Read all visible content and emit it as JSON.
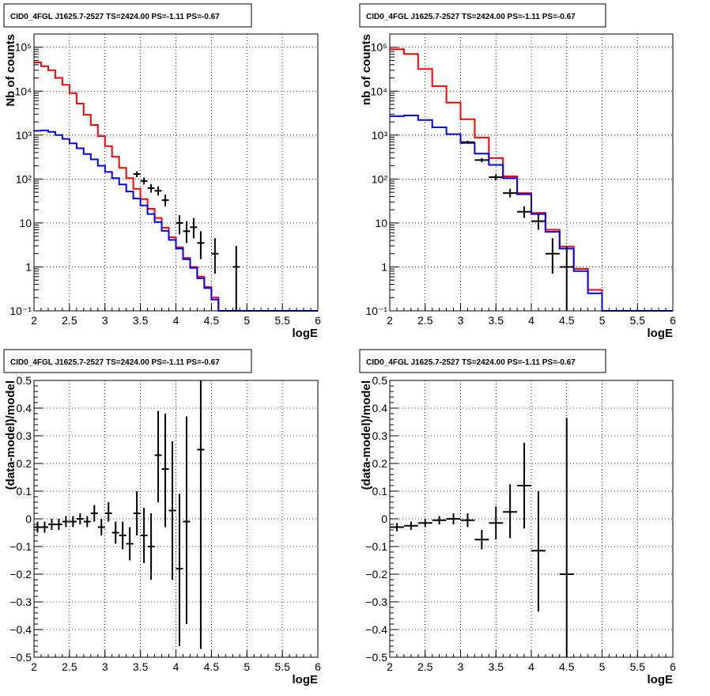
{
  "colors": {
    "data": "#000000",
    "model_total": "#ff0000",
    "model_component": "#0000ff",
    "frame": "#000000",
    "grid": "#000000"
  },
  "chart_data": [
    {
      "type": "line",
      "title": "CID0_4FGL J1625.7-2527 TS=2424.00 PS=-1.11 PS=-0.67",
      "xlabel": "logE",
      "ylabel": "Nb of counts",
      "xlim": [
        2,
        6
      ],
      "ylim": [
        0.1,
        200000
      ],
      "yscale": "log",
      "grid": true,
      "x_ticks": [
        "2",
        "2.5",
        "3",
        "3.5",
        "4",
        "4.5",
        "5",
        "5.5",
        "6"
      ],
      "y_ticks": [
        "10⁻¹",
        "1",
        "10",
        "10²",
        "10³",
        "10⁴",
        "10⁵"
      ],
      "bin_edges": [
        2.0,
        2.1,
        2.2,
        2.3,
        2.4,
        2.5,
        2.6,
        2.7,
        2.8,
        2.9,
        3.0,
        3.1,
        3.2,
        3.3,
        3.4,
        3.5,
        3.6,
        3.7,
        3.8,
        3.9,
        4.0,
        4.1,
        4.2,
        4.3,
        4.4,
        4.5,
        4.6,
        4.7,
        4.8,
        4.9,
        5.0,
        5.1,
        5.2,
        5.3,
        5.4,
        5.5,
        5.6,
        5.7,
        5.8,
        5.9,
        6.0
      ],
      "series": [
        {
          "color": "#ff0000",
          "style": "step",
          "values": [
            45000,
            37000,
            30000,
            20000,
            14000,
            9000,
            5200,
            2900,
            1700,
            950,
            560,
            320,
            180,
            105,
            60,
            35,
            21,
            13,
            7.8,
            4.7,
            2.8,
            1.6,
            1.0,
            0.6,
            0.35,
            0.2,
            0.1,
            0.1,
            0.1,
            0.1,
            0.1,
            0.1,
            0.1,
            0.1,
            0.1,
            0.1,
            0.1,
            0.1,
            0.1,
            0.1
          ]
        },
        {
          "color": "#0000ff",
          "style": "step",
          "values": [
            1250,
            1280,
            1180,
            1000,
            820,
            650,
            500,
            370,
            280,
            200,
            145,
            105,
            75,
            52,
            36,
            25,
            16,
            10.5,
            6.6,
            4.1,
            2.6,
            1.5,
            0.95,
            0.55,
            0.33,
            0.18,
            0.1,
            0.1,
            0.1,
            0.1,
            0.1,
            0.1,
            0.1,
            0.1,
            0.1,
            0.1,
            0.1,
            0.1,
            0.1,
            0.1
          ]
        },
        {
          "color": "#000000",
          "style": "errorbar",
          "points": [
            {
              "x": 3.45,
              "y": 130,
              "ylo": 110,
              "yhi": 150,
              "xerr": 0.05
            },
            {
              "x": 3.55,
              "y": 90,
              "ylo": 75,
              "yhi": 108,
              "xerr": 0.05
            },
            {
              "x": 3.65,
              "y": 62,
              "ylo": 49,
              "yhi": 77,
              "xerr": 0.05
            },
            {
              "x": 3.75,
              "y": 54,
              "ylo": 42,
              "yhi": 68,
              "xerr": 0.05
            },
            {
              "x": 3.85,
              "y": 33,
              "ylo": 24,
              "yhi": 44,
              "xerr": 0.05
            },
            {
              "x": 4.05,
              "y": 10,
              "ylo": 5.5,
              "yhi": 15,
              "xerr": 0.05
            },
            {
              "x": 4.15,
              "y": 6.5,
              "ylo": 3.5,
              "yhi": 11,
              "xerr": 0.05
            },
            {
              "x": 4.25,
              "y": 8,
              "ylo": 4.5,
              "yhi": 13,
              "xerr": 0.05
            },
            {
              "x": 4.35,
              "y": 3.5,
              "ylo": 1.5,
              "yhi": 6.5,
              "xerr": 0.05
            },
            {
              "x": 4.55,
              "y": 2,
              "ylo": 0.7,
              "yhi": 4.5,
              "xerr": 0.05
            },
            {
              "x": 4.85,
              "y": 1,
              "ylo": 0.1,
              "yhi": 3,
              "xerr": 0.05
            }
          ]
        }
      ]
    },
    {
      "type": "line",
      "title": "CID0_4FGL J1625.7-2527 TS=2424.00 PS=-1.11 PS=-0.67",
      "xlabel": "logE",
      "ylabel": "nb of counts",
      "xlim": [
        2,
        6
      ],
      "ylim": [
        0.1,
        200000
      ],
      "yscale": "log",
      "grid": true,
      "x_ticks": [
        "2",
        "2.5",
        "3",
        "3.5",
        "4",
        "4.5",
        "5",
        "5.5",
        "6"
      ],
      "y_ticks": [
        "10⁻¹",
        "1",
        "10",
        "10²",
        "10³",
        "10⁴",
        "10⁵"
      ],
      "bin_edges": [
        2.0,
        2.2,
        2.4,
        2.6,
        2.8,
        3.0,
        3.2,
        3.4,
        3.6,
        3.8,
        4.0,
        4.2,
        4.4,
        4.6,
        4.8,
        5.0,
        5.2,
        5.4,
        5.6,
        5.8,
        6.0
      ],
      "series": [
        {
          "color": "#ff0000",
          "style": "step",
          "values": [
            90000,
            70000,
            32000,
            13000,
            5500,
            2300,
            880,
            300,
            115,
            48,
            17,
            7,
            2.9,
            0.9,
            0.3,
            0.1,
            0.1,
            0.1,
            0.1,
            0.1
          ]
        },
        {
          "color": "#0000ff",
          "style": "step",
          "values": [
            2700,
            2800,
            2200,
            1500,
            1050,
            660,
            380,
            210,
            105,
            45,
            16,
            6.3,
            2.6,
            0.8,
            0.25,
            0.1,
            0.1,
            0.1,
            0.1,
            0.1
          ]
        },
        {
          "color": "#000000",
          "style": "errorbar",
          "points": [
            {
              "x": 3.1,
              "y": 690,
              "ylo": 640,
              "yhi": 740,
              "xerr": 0.1
            },
            {
              "x": 3.3,
              "y": 270,
              "ylo": 240,
              "yhi": 300,
              "xerr": 0.1
            },
            {
              "x": 3.5,
              "y": 110,
              "ylo": 92,
              "yhi": 128,
              "xerr": 0.1
            },
            {
              "x": 3.7,
              "y": 48,
              "ylo": 38,
              "yhi": 60,
              "xerr": 0.1
            },
            {
              "x": 3.9,
              "y": 18,
              "ylo": 13,
              "yhi": 24,
              "xerr": 0.1
            },
            {
              "x": 4.1,
              "y": 11,
              "ylo": 7,
              "yhi": 16,
              "xerr": 0.1
            },
            {
              "x": 4.3,
              "y": 2,
              "ylo": 0.7,
              "yhi": 4.5,
              "xerr": 0.1
            },
            {
              "x": 4.5,
              "y": 1,
              "ylo": 0.1,
              "yhi": 3,
              "xerr": 0.1
            }
          ]
        }
      ]
    },
    {
      "type": "scatter",
      "title": "CID0_4FGL J1625.7-2527 TS=2424.00 PS=-1.11 PS=-0.67",
      "xlabel": "logE",
      "ylabel": "(data-model)/model",
      "xlim": [
        2,
        6
      ],
      "ylim": [
        -0.5,
        0.5
      ],
      "grid": true,
      "x_ticks": [
        "2",
        "2.5",
        "3",
        "3.5",
        "4",
        "4.5",
        "5",
        "5.5",
        "6"
      ],
      "y_ticks": [
        "−0.5",
        "−0.4",
        "−0.3",
        "−0.2",
        "−0.1",
        "0",
        "0.1",
        "0.2",
        "0.3",
        "0.4",
        "0.5"
      ],
      "series": [
        {
          "color": "#000000",
          "style": "errorbar",
          "points": [
            {
              "x": 2.05,
              "y": -0.03,
              "ylo": -0.05,
              "yhi": -0.01,
              "xerr": 0.05
            },
            {
              "x": 2.15,
              "y": -0.03,
              "ylo": -0.05,
              "yhi": -0.01,
              "xerr": 0.05
            },
            {
              "x": 2.25,
              "y": -0.02,
              "ylo": -0.04,
              "yhi": 0.0,
              "xerr": 0.05
            },
            {
              "x": 2.35,
              "y": -0.02,
              "ylo": -0.04,
              "yhi": 0.0,
              "xerr": 0.05
            },
            {
              "x": 2.45,
              "y": -0.01,
              "ylo": -0.03,
              "yhi": 0.01,
              "xerr": 0.05
            },
            {
              "x": 2.55,
              "y": -0.01,
              "ylo": -0.03,
              "yhi": 0.01,
              "xerr": 0.05
            },
            {
              "x": 2.65,
              "y": 0.0,
              "ylo": -0.02,
              "yhi": 0.02,
              "xerr": 0.05
            },
            {
              "x": 2.75,
              "y": -0.01,
              "ylo": -0.03,
              "yhi": 0.01,
              "xerr": 0.05
            },
            {
              "x": 2.85,
              "y": 0.02,
              "ylo": -0.01,
              "yhi": 0.05,
              "xerr": 0.05
            },
            {
              "x": 2.95,
              "y": -0.03,
              "ylo": -0.06,
              "yhi": 0.0,
              "xerr": 0.05
            },
            {
              "x": 3.05,
              "y": 0.02,
              "ylo": -0.01,
              "yhi": 0.06,
              "xerr": 0.05
            },
            {
              "x": 3.15,
              "y": -0.05,
              "ylo": -0.09,
              "yhi": -0.01,
              "xerr": 0.05
            },
            {
              "x": 3.25,
              "y": -0.06,
              "ylo": -0.11,
              "yhi": -0.01,
              "xerr": 0.05
            },
            {
              "x": 3.35,
              "y": -0.09,
              "ylo": -0.15,
              "yhi": -0.03,
              "xerr": 0.05
            },
            {
              "x": 3.45,
              "y": 0.02,
              "ylo": -0.06,
              "yhi": 0.1,
              "xerr": 0.05
            },
            {
              "x": 3.55,
              "y": -0.06,
              "ylo": -0.16,
              "yhi": 0.04,
              "xerr": 0.05
            },
            {
              "x": 3.65,
              "y": -0.1,
              "ylo": -0.22,
              "yhi": 0.02,
              "xerr": 0.05
            },
            {
              "x": 3.75,
              "y": 0.23,
              "ylo": 0.06,
              "yhi": 0.39,
              "xerr": 0.05
            },
            {
              "x": 3.85,
              "y": 0.18,
              "ylo": -0.03,
              "yhi": 0.38,
              "xerr": 0.05
            },
            {
              "x": 3.95,
              "y": 0.03,
              "ylo": -0.22,
              "yhi": 0.28,
              "xerr": 0.05
            },
            {
              "x": 4.05,
              "y": -0.18,
              "ylo": -0.46,
              "yhi": 0.09,
              "xerr": 0.05
            },
            {
              "x": 4.15,
              "y": -0.01,
              "ylo": -0.38,
              "yhi": 0.37,
              "xerr": 0.05
            },
            {
              "x": 4.35,
              "y": 0.25,
              "ylo": -0.47,
              "yhi": 0.5,
              "xerr": 0.05
            }
          ]
        }
      ]
    },
    {
      "type": "scatter",
      "title": "CID0_4FGL J1625.7-2527 TS=2424.00 PS=-1.11 PS=-0.67",
      "xlabel": "logE",
      "ylabel": "(data-model)/model",
      "xlim": [
        2,
        6
      ],
      "ylim": [
        -0.5,
        0.5
      ],
      "grid": true,
      "x_ticks": [
        "2",
        "2.5",
        "3",
        "3.5",
        "4",
        "4.5",
        "5",
        "5.5",
        "6"
      ],
      "y_ticks": [
        "−0.5",
        "−0.4",
        "−0.3",
        "−0.2",
        "−0.1",
        "0",
        "0.1",
        "0.2",
        "0.3",
        "0.4",
        "0.5"
      ],
      "series": [
        {
          "color": "#000000",
          "style": "errorbar",
          "points": [
            {
              "x": 2.1,
              "y": -0.03,
              "ylo": -0.045,
              "yhi": -0.015,
              "xerr": 0.1
            },
            {
              "x": 2.3,
              "y": -0.025,
              "ylo": -0.04,
              "yhi": -0.01,
              "xerr": 0.1
            },
            {
              "x": 2.5,
              "y": -0.015,
              "ylo": -0.03,
              "yhi": 0.0,
              "xerr": 0.1
            },
            {
              "x": 2.7,
              "y": -0.005,
              "ylo": -0.02,
              "yhi": 0.01,
              "xerr": 0.1
            },
            {
              "x": 2.9,
              "y": 0.0,
              "ylo": -0.02,
              "yhi": 0.02,
              "xerr": 0.1
            },
            {
              "x": 3.1,
              "y": -0.005,
              "ylo": -0.03,
              "yhi": 0.02,
              "xerr": 0.1
            },
            {
              "x": 3.3,
              "y": -0.075,
              "ylo": -0.11,
              "yhi": -0.04,
              "xerr": 0.1
            },
            {
              "x": 3.5,
              "y": -0.015,
              "ylo": -0.075,
              "yhi": 0.045,
              "xerr": 0.1
            },
            {
              "x": 3.7,
              "y": 0.025,
              "ylo": -0.07,
              "yhi": 0.125,
              "xerr": 0.1
            },
            {
              "x": 3.9,
              "y": 0.12,
              "ylo": -0.035,
              "yhi": 0.275,
              "xerr": 0.1
            },
            {
              "x": 4.1,
              "y": -0.115,
              "ylo": -0.335,
              "yhi": 0.1,
              "xerr": 0.1
            },
            {
              "x": 4.5,
              "y": -0.2,
              "ylo": -0.5,
              "yhi": 0.365,
              "xerr": 0.1
            }
          ]
        }
      ]
    }
  ]
}
